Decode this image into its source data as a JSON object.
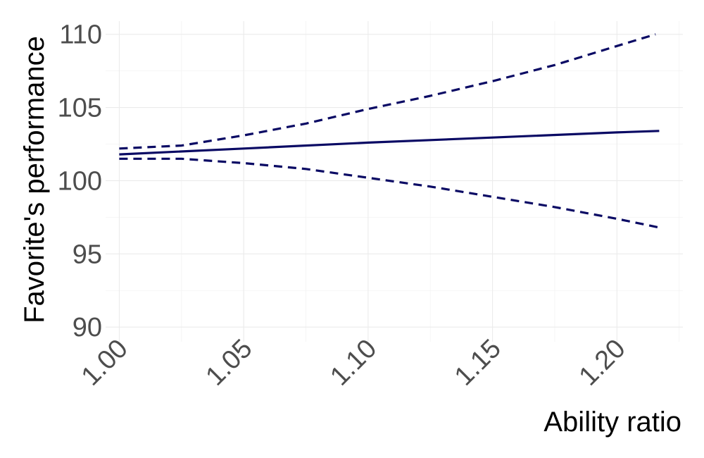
{
  "chart_data": {
    "type": "line",
    "title": "",
    "xlabel": "Ability ratio",
    "ylabel": "Favorite's performance",
    "xlim": [
      0.9945,
      1.2265
    ],
    "ylim": [
      89.0,
      110.9
    ],
    "x_ticks": [
      1.0,
      1.05,
      1.1,
      1.15,
      1.2
    ],
    "x_tick_labels": [
      "1.00",
      "1.05",
      "1.10",
      "1.15",
      "1.20"
    ],
    "y_ticks": [
      90,
      95,
      100,
      105,
      110
    ],
    "y_tick_labels": [
      "90",
      "95",
      "100",
      "105",
      "110"
    ],
    "grid": true,
    "legend": "none",
    "colors": {
      "line": "#0a0a64",
      "grid": "#ebebeb",
      "tick_text": "#4d4d4d"
    },
    "series": [
      {
        "style": "solid",
        "x": [
          1.0,
          1.05,
          1.1,
          1.15,
          1.2,
          1.217
        ],
        "values": [
          101.8,
          102.2,
          102.6,
          102.95,
          103.3,
          103.4
        ]
      },
      {
        "style": "dashed",
        "x": [
          1.0,
          1.025,
          1.05,
          1.075,
          1.1,
          1.125,
          1.15,
          1.175,
          1.2,
          1.2155
        ],
        "values": [
          102.2,
          102.4,
          103.1,
          103.9,
          104.9,
          105.8,
          106.8,
          107.9,
          109.2,
          110.0
        ]
      },
      {
        "style": "dashed",
        "x": [
          1.0,
          1.025,
          1.05,
          1.075,
          1.1,
          1.125,
          1.15,
          1.175,
          1.2,
          1.217
        ],
        "values": [
          101.5,
          101.5,
          101.2,
          100.8,
          100.2,
          99.6,
          98.9,
          98.2,
          97.4,
          96.8
        ]
      }
    ]
  }
}
